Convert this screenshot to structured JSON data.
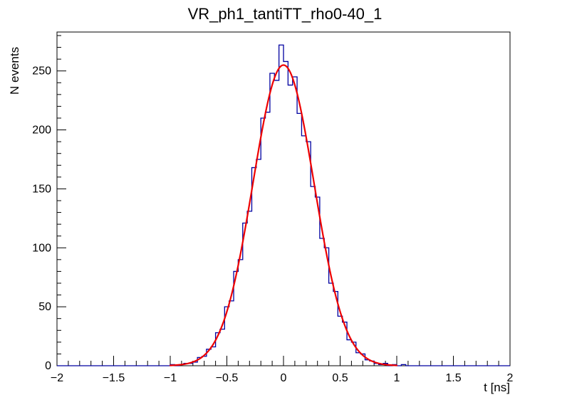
{
  "title": "VR_ph1_tantiTT_rho0-40_1",
  "colors": {
    "background": "#ffffff",
    "frame": "#000000",
    "histogram": "#0000a0",
    "fit": "#ee0000",
    "text": "#000000"
  },
  "chart_data": {
    "type": "bar",
    "subtype": "histogram-with-gaussian-fit",
    "title": "VR_ph1_tantiTT_rho0-40_1",
    "xlabel": "t [ns]",
    "ylabel": "N events",
    "xlim": [
      -2,
      2
    ],
    "ylim": [
      0,
      283
    ],
    "grid": false,
    "legend": "none",
    "x_ticks": [
      {
        "v": -2,
        "label": "−2"
      },
      {
        "v": -1.5,
        "label": "−1.5"
      },
      {
        "v": -1,
        "label": "−1"
      },
      {
        "v": -0.5,
        "label": "−0.5"
      },
      {
        "v": 0,
        "label": "0"
      },
      {
        "v": 0.5,
        "label": "0.5"
      },
      {
        "v": 1,
        "label": "1"
      },
      {
        "v": 1.5,
        "label": "1.5"
      },
      {
        "v": 2,
        "label": "2"
      }
    ],
    "y_ticks": [
      {
        "v": 0,
        "label": "0"
      },
      {
        "v": 50,
        "label": "50"
      },
      {
        "v": 100,
        "label": "100"
      },
      {
        "v": 150,
        "label": "150"
      },
      {
        "v": 200,
        "label": "200"
      },
      {
        "v": 250,
        "label": "250"
      }
    ],
    "x_minor_step": 0.1,
    "y_minor_step": 10,
    "histogram": {
      "xmin": -2,
      "xmax": 2,
      "nbins": 100,
      "counts": [
        0,
        0,
        0,
        0,
        0,
        0,
        0,
        0,
        0,
        0,
        0,
        0,
        0,
        0,
        0,
        0,
        0,
        0,
        0,
        0,
        0,
        0,
        0,
        0,
        0,
        1,
        0,
        1,
        2,
        2,
        3,
        7,
        8,
        14,
        16,
        28,
        31,
        50,
        55,
        80,
        90,
        121,
        131,
        168,
        175,
        210,
        215,
        248,
        242,
        272,
        258,
        238,
        245,
        214,
        195,
        190,
        152,
        143,
        108,
        100,
        70,
        63,
        42,
        37,
        22,
        20,
        11,
        10,
        5,
        4,
        2,
        1,
        2,
        0,
        1,
        0,
        1,
        0,
        0,
        0,
        0,
        0,
        0,
        0,
        0,
        0,
        0,
        0,
        0,
        0,
        0,
        0,
        0,
        0,
        0,
        0,
        0,
        0,
        0,
        0
      ]
    },
    "fit": {
      "model": "gaussian",
      "amplitude": 255,
      "mean": 0,
      "sigma": 0.27,
      "range": [
        -1.0,
        1.0
      ]
    }
  }
}
